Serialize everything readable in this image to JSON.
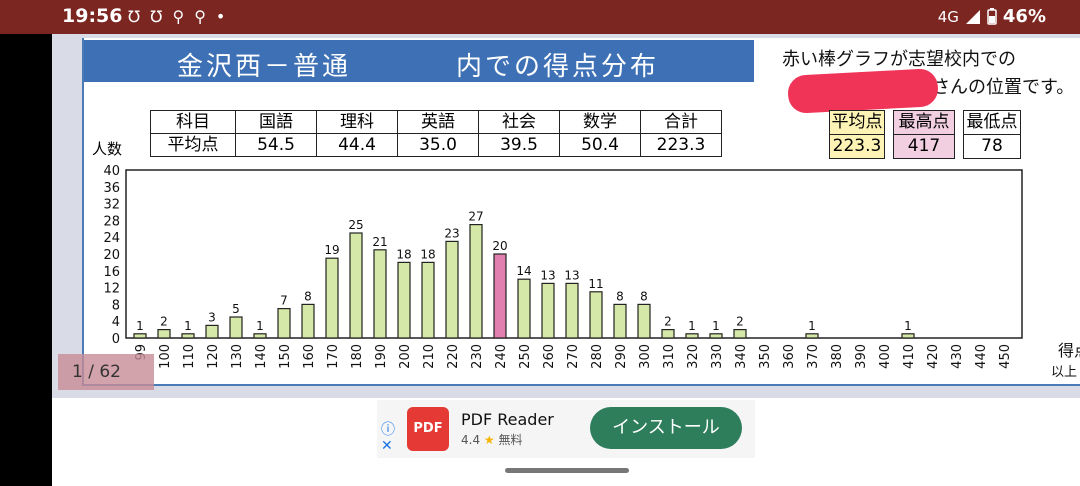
{
  "status": {
    "time": "19:56",
    "icons": [
      "℧",
      "℧",
      "⚲",
      "⚲",
      "•"
    ],
    "network": "4G",
    "battery": "46%"
  },
  "document": {
    "school": "金沢西－普通",
    "distribution_title": "内での得点分布",
    "note_line1": "赤い棒グラフが志望校内での",
    "note_line2": "さんの位置です。",
    "scores_header": [
      "科目",
      "国語",
      "理科",
      "英語",
      "社会",
      "数学",
      "合計"
    ],
    "scores_avg": [
      "平均点",
      "54.5",
      "44.4",
      "35.0",
      "39.5",
      "50.4",
      "223.3"
    ],
    "stats": [
      {
        "label": "平均点",
        "value": "223.3"
      },
      {
        "label": "最高点",
        "value": "417"
      },
      {
        "label": "最低点",
        "value": "78"
      }
    ],
    "ylabel": "人数",
    "xlabel_line1": "得点",
    "xlabel_line2": "以上"
  },
  "chart_data": {
    "type": "bar",
    "title": "",
    "xlabel": "得点 以上",
    "ylabel": "人数",
    "ylim": [
      0,
      40
    ],
    "yticks": [
      0,
      4,
      8,
      12,
      16,
      20,
      24,
      28,
      32,
      36,
      40
    ],
    "categories": [
      "99",
      "100",
      "110",
      "120",
      "130",
      "140",
      "150",
      "160",
      "170",
      "180",
      "190",
      "200",
      "210",
      "220",
      "230",
      "240",
      "250",
      "260",
      "270",
      "280",
      "290",
      "300",
      "310",
      "320",
      "330",
      "340",
      "350",
      "360",
      "370",
      "380",
      "390",
      "400",
      "410",
      "420",
      "430",
      "440",
      "450"
    ],
    "values": [
      1,
      2,
      1,
      3,
      5,
      1,
      7,
      8,
      19,
      25,
      21,
      18,
      18,
      23,
      27,
      20,
      14,
      13,
      13,
      11,
      8,
      8,
      2,
      1,
      1,
      2,
      0,
      0,
      1,
      0,
      0,
      0,
      1,
      0,
      0,
      0,
      0
    ],
    "highlight_category": "240",
    "bar_color": "#d6e8a7",
    "highlight_color": "#e07fb0"
  },
  "viewer": {
    "page_indicator": "1 / 62"
  },
  "ad": {
    "info_icon": "ⓘ",
    "close_icon": "✕",
    "icon_text": "PDF",
    "app_name": "PDF Reader",
    "rating": "4.4",
    "star": "★",
    "price": "無料",
    "install_label": "インストール"
  }
}
